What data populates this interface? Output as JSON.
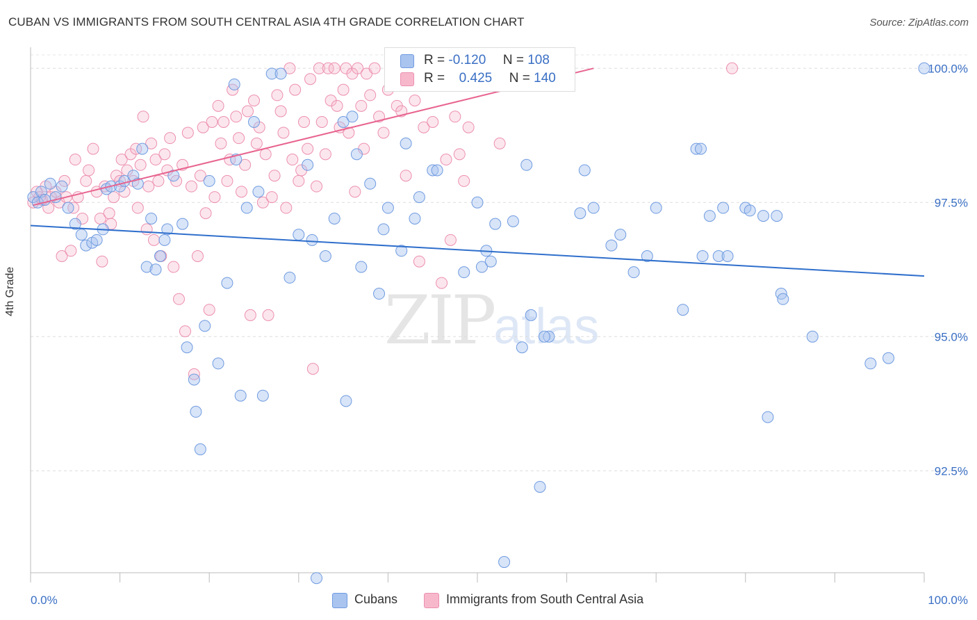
{
  "title": "CUBAN VS IMMIGRANTS FROM SOUTH CENTRAL ASIA 4TH GRADE CORRELATION CHART",
  "source": "Source: ZipAtlas.com",
  "watermark": {
    "zip": "ZIP",
    "atlas": "atlas"
  },
  "legend": {
    "r_label": "R =",
    "n_label": "N =",
    "rows": [
      {
        "r": "-0.120",
        "n": "108",
        "color": "#a9c4ef",
        "border": "#6f9be0"
      },
      {
        "r": "0.425",
        "n": "140",
        "color": "#f7b8cc",
        "border": "#ec8fae"
      }
    ]
  },
  "bottom_legend": [
    {
      "label": "Cubans",
      "color": "#a9c4ef",
      "border": "#6f9be0"
    },
    {
      "label": "Immigrants from South Central Asia",
      "color": "#f7b8cc",
      "border": "#ec8fae"
    }
  ],
  "chart_data": {
    "type": "scatter",
    "ylabel": "4th Grade",
    "x_tick_labels": [
      "0.0%",
      "100.0%"
    ],
    "y_tick_labels": [
      "100.0%",
      "97.5%",
      "95.0%",
      "92.5%"
    ],
    "y_ticks": [
      100.0,
      97.5,
      95.0,
      92.5
    ],
    "xlim": [
      0,
      100
    ],
    "ylim": [
      90.6,
      100.25
    ],
    "grid": true,
    "colors": {
      "blue": "#5b8fd9",
      "pink": "#ea6f98",
      "blue_line": "#2f6fcc",
      "pink_line": "#e8648f"
    },
    "series": [
      {
        "name": "Cubans",
        "trend": {
          "x": [
            0,
            100
          ],
          "y": [
            97.07,
            96.13
          ]
        },
        "points": [
          [
            0.3,
            97.6
          ],
          [
            0.8,
            97.5
          ],
          [
            1.2,
            97.7
          ],
          [
            1.6,
            97.55
          ],
          [
            2.2,
            97.85
          ],
          [
            2.8,
            97.6
          ],
          [
            3.5,
            97.8
          ],
          [
            4.2,
            97.4
          ],
          [
            5.0,
            97.1
          ],
          [
            5.7,
            96.9
          ],
          [
            6.2,
            96.7
          ],
          [
            6.9,
            96.75
          ],
          [
            7.4,
            96.8
          ],
          [
            8.1,
            97.0
          ],
          [
            8.5,
            97.75
          ],
          [
            9.0,
            97.8
          ],
          [
            10.0,
            97.8
          ],
          [
            10.5,
            97.9
          ],
          [
            11.5,
            98.0
          ],
          [
            12.0,
            97.85
          ],
          [
            12.5,
            98.5
          ],
          [
            13.0,
            96.3
          ],
          [
            13.5,
            97.2
          ],
          [
            14.0,
            96.25
          ],
          [
            14.5,
            96.5
          ],
          [
            15.0,
            96.8
          ],
          [
            15.3,
            97.0
          ],
          [
            16.0,
            98.0
          ],
          [
            17.0,
            97.1
          ],
          [
            17.5,
            94.8
          ],
          [
            18.3,
            94.2
          ],
          [
            18.5,
            93.6
          ],
          [
            19.0,
            92.9
          ],
          [
            19.5,
            95.2
          ],
          [
            20.0,
            97.9
          ],
          [
            21.0,
            94.5
          ],
          [
            22.0,
            96.0
          ],
          [
            22.8,
            99.7
          ],
          [
            23.0,
            98.3
          ],
          [
            23.5,
            93.9
          ],
          [
            24.2,
            97.4
          ],
          [
            25.0,
            99.0
          ],
          [
            25.5,
            97.7
          ],
          [
            26.0,
            93.9
          ],
          [
            27.0,
            99.9
          ],
          [
            28.0,
            99.9
          ],
          [
            29.0,
            96.1
          ],
          [
            30.0,
            96.9
          ],
          [
            31.0,
            98.2
          ],
          [
            31.5,
            96.8
          ],
          [
            32.0,
            90.5
          ],
          [
            33.0,
            96.5
          ],
          [
            34.0,
            97.2
          ],
          [
            35.0,
            99.0
          ],
          [
            35.3,
            93.8
          ],
          [
            36.0,
            99.1
          ],
          [
            36.5,
            98.4
          ],
          [
            37.0,
            96.3
          ],
          [
            38.0,
            97.85
          ],
          [
            39.0,
            95.8
          ],
          [
            39.5,
            97.0
          ],
          [
            40.0,
            97.4
          ],
          [
            41.5,
            96.6
          ],
          [
            42.0,
            98.6
          ],
          [
            43.0,
            97.2
          ],
          [
            43.5,
            97.6
          ],
          [
            45.0,
            98.1
          ],
          [
            45.5,
            98.1
          ],
          [
            48.5,
            96.2
          ],
          [
            50.0,
            97.5
          ],
          [
            50.5,
            96.3
          ],
          [
            51.0,
            96.6
          ],
          [
            51.5,
            96.4
          ],
          [
            52.0,
            97.1
          ],
          [
            53.0,
            90.8
          ],
          [
            54.0,
            97.15
          ],
          [
            55.0,
            94.8
          ],
          [
            55.5,
            98.2
          ],
          [
            56.0,
            95.4
          ],
          [
            57.0,
            92.2
          ],
          [
            58.0,
            95.0
          ],
          [
            57.5,
            95.0
          ],
          [
            61.5,
            97.3
          ],
          [
            62.0,
            98.1
          ],
          [
            63.0,
            97.4
          ],
          [
            65.0,
            96.7
          ],
          [
            66.0,
            96.9
          ],
          [
            67.5,
            96.2
          ],
          [
            69.0,
            96.5
          ],
          [
            70.0,
            97.4
          ],
          [
            73.0,
            95.5
          ],
          [
            74.5,
            98.5
          ],
          [
            75.0,
            98.5
          ],
          [
            75.2,
            96.5
          ],
          [
            76.0,
            97.25
          ],
          [
            77.0,
            96.5
          ],
          [
            77.5,
            97.4
          ],
          [
            78.0,
            96.5
          ],
          [
            80.0,
            97.4
          ],
          [
            80.5,
            97.35
          ],
          [
            82.0,
            97.25
          ],
          [
            82.5,
            93.5
          ],
          [
            83.5,
            97.25
          ],
          [
            84.0,
            95.8
          ],
          [
            84.2,
            95.7
          ],
          [
            87.5,
            95.0
          ],
          [
            94.0,
            94.5
          ],
          [
            96.0,
            94.6
          ],
          [
            100.0,
            100.0
          ]
        ]
      },
      {
        "name": "Immigrants from South Central Asia",
        "trend": {
          "x": [
            0.3,
            63
          ],
          "y": [
            97.45,
            100.0
          ]
        },
        "points": [
          [
            0.3,
            97.5
          ],
          [
            0.7,
            97.7
          ],
          [
            1.0,
            97.6
          ],
          [
            1.3,
            97.55
          ],
          [
            1.7,
            97.8
          ],
          [
            2.0,
            97.4
          ],
          [
            2.3,
            97.6
          ],
          [
            2.8,
            97.7
          ],
          [
            3.2,
            97.5
          ],
          [
            3.5,
            96.5
          ],
          [
            3.8,
            97.9
          ],
          [
            4.0,
            97.6
          ],
          [
            4.5,
            96.6
          ],
          [
            4.8,
            97.4
          ],
          [
            5.0,
            98.3
          ],
          [
            5.3,
            97.6
          ],
          [
            5.8,
            97.2
          ],
          [
            6.2,
            97.9
          ],
          [
            6.5,
            98.1
          ],
          [
            7.0,
            98.5
          ],
          [
            7.4,
            97.7
          ],
          [
            7.8,
            97.2
          ],
          [
            8.0,
            96.4
          ],
          [
            8.3,
            97.8
          ],
          [
            8.8,
            97.3
          ],
          [
            9.0,
            97.1
          ],
          [
            9.3,
            97.6
          ],
          [
            9.6,
            98.0
          ],
          [
            10.0,
            97.9
          ],
          [
            10.2,
            98.3
          ],
          [
            10.5,
            97.7
          ],
          [
            10.8,
            98.1
          ],
          [
            11.2,
            98.4
          ],
          [
            11.5,
            97.9
          ],
          [
            11.8,
            98.5
          ],
          [
            12.0,
            97.4
          ],
          [
            12.3,
            98.2
          ],
          [
            12.6,
            99.1
          ],
          [
            13.0,
            97.0
          ],
          [
            13.2,
            97.8
          ],
          [
            13.5,
            98.6
          ],
          [
            13.8,
            96.8
          ],
          [
            14.0,
            98.3
          ],
          [
            14.3,
            97.9
          ],
          [
            14.6,
            96.5
          ],
          [
            15.0,
            98.4
          ],
          [
            15.3,
            98.1
          ],
          [
            15.6,
            98.7
          ],
          [
            16.0,
            96.3
          ],
          [
            16.3,
            97.9
          ],
          [
            16.6,
            95.7
          ],
          [
            17.0,
            98.2
          ],
          [
            17.3,
            95.1
          ],
          [
            17.6,
            98.8
          ],
          [
            18.0,
            97.8
          ],
          [
            18.3,
            94.3
          ],
          [
            18.7,
            96.5
          ],
          [
            19.0,
            98.0
          ],
          [
            19.3,
            98.9
          ],
          [
            19.6,
            97.3
          ],
          [
            20.0,
            95.5
          ],
          [
            20.3,
            99.0
          ],
          [
            20.6,
            97.6
          ],
          [
            21.0,
            99.3
          ],
          [
            21.3,
            98.6
          ],
          [
            21.6,
            99.0
          ],
          [
            22.0,
            97.9
          ],
          [
            22.3,
            98.3
          ],
          [
            22.6,
            99.6
          ],
          [
            23.0,
            99.1
          ],
          [
            23.3,
            98.7
          ],
          [
            23.6,
            97.7
          ],
          [
            24.0,
            98.2
          ],
          [
            24.3,
            99.2
          ],
          [
            24.6,
            95.4
          ],
          [
            25.0,
            99.4
          ],
          [
            25.3,
            98.6
          ],
          [
            25.6,
            98.9
          ],
          [
            26.0,
            97.5
          ],
          [
            26.3,
            98.4
          ],
          [
            26.6,
            95.4
          ],
          [
            27.0,
            97.6
          ],
          [
            27.3,
            98.0
          ],
          [
            27.6,
            99.5
          ],
          [
            28.0,
            99.2
          ],
          [
            28.3,
            98.8
          ],
          [
            28.6,
            97.4
          ],
          [
            29.0,
            100.0
          ],
          [
            29.3,
            98.3
          ],
          [
            29.6,
            99.6
          ],
          [
            30.0,
            97.9
          ],
          [
            30.3,
            98.1
          ],
          [
            30.6,
            99.0
          ],
          [
            31.0,
            98.5
          ],
          [
            31.3,
            99.8
          ],
          [
            31.6,
            94.4
          ],
          [
            32.0,
            97.8
          ],
          [
            32.3,
            100.0
          ],
          [
            32.6,
            99.0
          ],
          [
            33.0,
            98.4
          ],
          [
            33.3,
            100.0
          ],
          [
            33.6,
            99.4
          ],
          [
            34.0,
            100.0
          ],
          [
            34.3,
            99.3
          ],
          [
            34.6,
            98.9
          ],
          [
            35.0,
            99.6
          ],
          [
            35.3,
            100.0
          ],
          [
            35.6,
            98.8
          ],
          [
            36.0,
            99.9
          ],
          [
            36.3,
            97.7
          ],
          [
            36.6,
            100.0
          ],
          [
            37.0,
            99.3
          ],
          [
            37.3,
            98.5
          ],
          [
            37.6,
            99.9
          ],
          [
            38.0,
            99.5
          ],
          [
            38.5,
            100.0
          ],
          [
            39.0,
            99.1
          ],
          [
            39.5,
            98.8
          ],
          [
            40.0,
            99.6
          ],
          [
            40.5,
            100.0
          ],
          [
            41.0,
            99.3
          ],
          [
            41.5,
            99.2
          ],
          [
            42.0,
            98.0
          ],
          [
            42.5,
            100.0
          ],
          [
            43.0,
            99.4
          ],
          [
            43.5,
            96.4
          ],
          [
            44.0,
            98.9
          ],
          [
            44.5,
            100.0
          ],
          [
            45.0,
            99.0
          ],
          [
            45.5,
            99.8
          ],
          [
            46.0,
            96.0
          ],
          [
            46.5,
            98.3
          ],
          [
            47.0,
            96.8
          ],
          [
            47.5,
            99.1
          ],
          [
            48.0,
            98.4
          ],
          [
            48.5,
            97.9
          ],
          [
            49.0,
            98.9
          ],
          [
            50.0,
            100.0
          ],
          [
            52.5,
            98.6
          ],
          [
            78.5,
            100.0
          ]
        ]
      }
    ]
  }
}
